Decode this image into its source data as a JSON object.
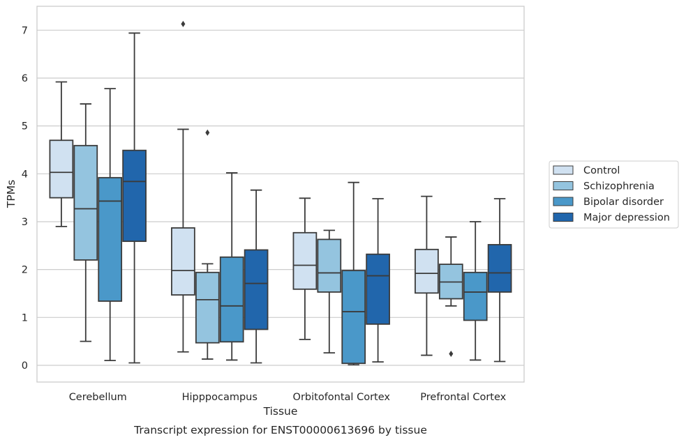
{
  "chart_data": {
    "type": "box",
    "title": "",
    "xlabel": "Tissue",
    "ylabel": "TPMs",
    "caption": "Transcript expression for ENST00000613696 by tissue",
    "ylim": [
      -0.35,
      7.5
    ],
    "yticks": [
      0,
      1,
      2,
      3,
      4,
      5,
      6,
      7
    ],
    "grid": "horizontal",
    "legend_position": "right",
    "categories": [
      "Cerebellum",
      "Hipppocampus",
      "Orbitofontal Cortex",
      "Prefrontal Cortex"
    ],
    "series": [
      {
        "name": "Control",
        "color": "#d0e1f1",
        "boxes": [
          {
            "whislo": 2.9,
            "q1": 3.5,
            "med": 4.03,
            "q3": 4.7,
            "whishi": 5.92,
            "fliers": []
          },
          {
            "whislo": 0.28,
            "q1": 1.47,
            "med": 1.98,
            "q3": 2.87,
            "whishi": 4.93,
            "fliers": [
              7.13
            ]
          },
          {
            "whislo": 0.54,
            "q1": 1.59,
            "med": 2.09,
            "q3": 2.77,
            "whishi": 3.49,
            "fliers": []
          },
          {
            "whislo": 0.21,
            "q1": 1.51,
            "med": 1.92,
            "q3": 2.42,
            "whishi": 3.53,
            "fliers": []
          }
        ]
      },
      {
        "name": "Schizophrenia",
        "color": "#94c4df",
        "boxes": [
          {
            "whislo": 0.5,
            "q1": 2.2,
            "med": 3.27,
            "q3": 4.59,
            "whishi": 5.46,
            "fliers": []
          },
          {
            "whislo": 0.13,
            "q1": 0.47,
            "med": 1.37,
            "q3": 1.94,
            "whishi": 2.12,
            "fliers": [
              4.86
            ]
          },
          {
            "whislo": 0.26,
            "q1": 1.53,
            "med": 1.93,
            "q3": 2.63,
            "whishi": 2.82,
            "fliers": []
          },
          {
            "whislo": 1.24,
            "q1": 1.39,
            "med": 1.74,
            "q3": 2.11,
            "whishi": 2.68,
            "fliers": [
              0.24
            ]
          }
        ]
      },
      {
        "name": "Bipolar disorder",
        "color": "#4a98c9",
        "boxes": [
          {
            "whislo": 0.1,
            "q1": 1.34,
            "med": 3.43,
            "q3": 3.92,
            "whishi": 5.78,
            "fliers": []
          },
          {
            "whislo": 0.11,
            "q1": 0.49,
            "med": 1.24,
            "q3": 2.26,
            "whishi": 4.02,
            "fliers": []
          },
          {
            "whislo": 0.01,
            "q1": 0.04,
            "med": 1.12,
            "q3": 1.98,
            "whishi": 3.82,
            "fliers": []
          },
          {
            "whislo": 0.11,
            "q1": 0.94,
            "med": 1.53,
            "q3": 1.94,
            "whishi": 3.0,
            "fliers": []
          }
        ]
      },
      {
        "name": "Major depression",
        "color": "#2166ac",
        "boxes": [
          {
            "whislo": 0.05,
            "q1": 2.59,
            "med": 3.84,
            "q3": 4.49,
            "whishi": 6.94,
            "fliers": []
          },
          {
            "whislo": 0.05,
            "q1": 0.75,
            "med": 1.71,
            "q3": 2.41,
            "whishi": 3.66,
            "fliers": []
          },
          {
            "whislo": 0.07,
            "q1": 0.86,
            "med": 1.87,
            "q3": 2.32,
            "whishi": 3.48,
            "fliers": []
          },
          {
            "whislo": 0.08,
            "q1": 1.53,
            "med": 1.93,
            "q3": 2.52,
            "whishi": 3.48,
            "fliers": []
          }
        ]
      }
    ]
  }
}
